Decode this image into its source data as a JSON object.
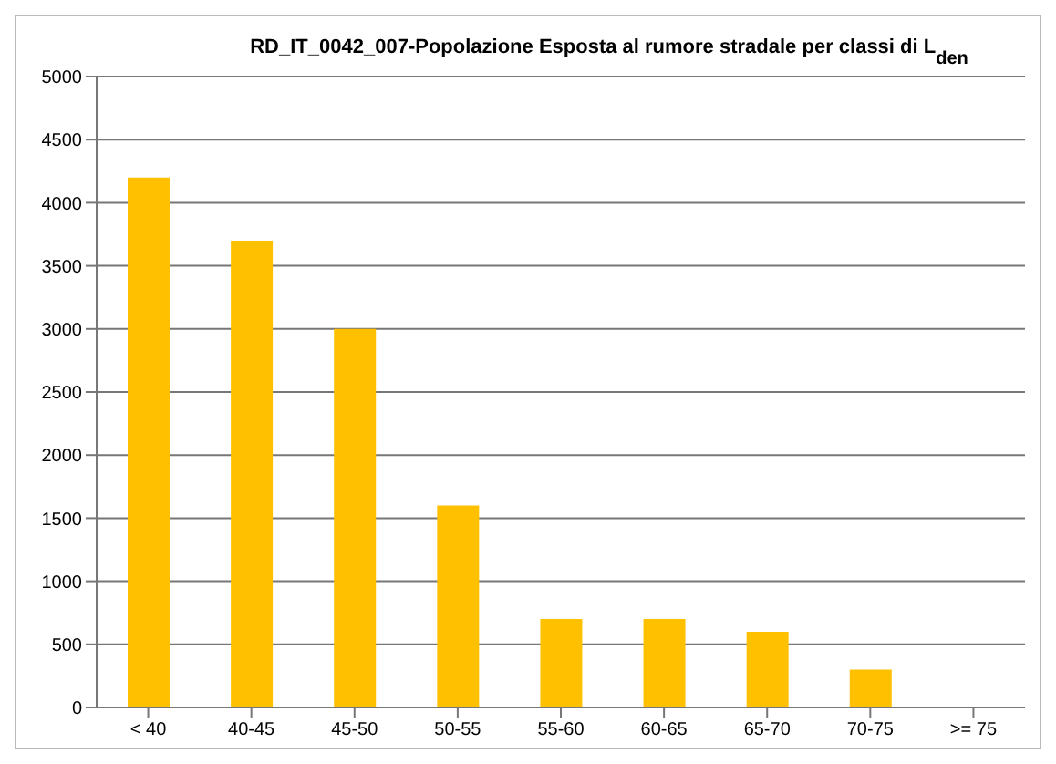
{
  "chart_data": {
    "type": "bar",
    "title": "RD_IT_0042_007-Popolazione Esposta al rumore stradale per classi di L$_{den}$",
    "categories": [
      "< 40",
      "40-45",
      "45-50",
      "50-55",
      "55-60",
      "60-65",
      "65-70",
      "70-75",
      ">= 75"
    ],
    "values": [
      4200,
      3700,
      3000,
      1600,
      700,
      700,
      600,
      300,
      0
    ],
    "color": "#ffc000",
    "ylim": [
      0,
      5000
    ],
    "yticks": [
      0,
      500,
      1000,
      1500,
      2000,
      2500,
      3000,
      3500,
      4000,
      4500,
      5000
    ],
    "grid": "y"
  }
}
